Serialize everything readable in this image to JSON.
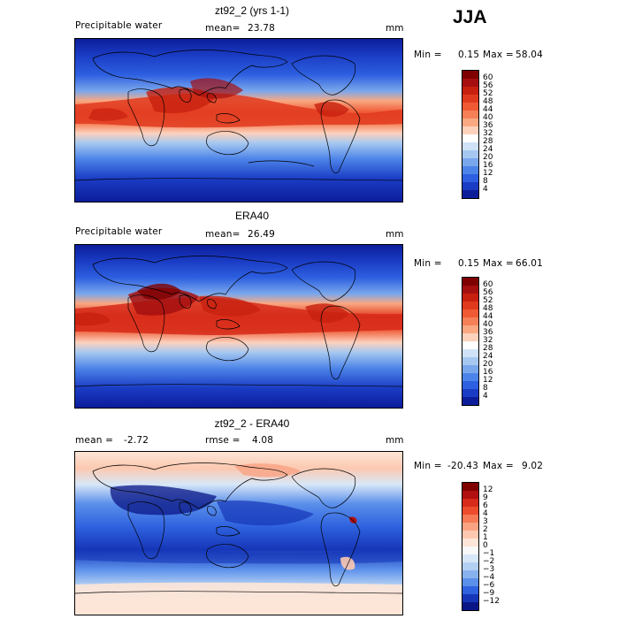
{
  "season": "JJA",
  "units": "mm",
  "panels": [
    {
      "title": "zt92_2 (yrs 1-1)",
      "variable": "Precipitable water",
      "stat1_label": "mean=",
      "stat1_value": "23.78",
      "stat2_label": "",
      "stat2_value": "",
      "min_label": "Min =",
      "min_value": "0.15",
      "max_label": "Max =",
      "max_value": "58.04",
      "legend_levels": [
        "60",
        "56",
        "52",
        "48",
        "44",
        "40",
        "36",
        "32",
        "28",
        "24",
        "20",
        "16",
        "12",
        "8",
        "4"
      ],
      "kind": "field"
    },
    {
      "title": "ERA40",
      "variable": "Precipitable water",
      "stat1_label": "mean=",
      "stat1_value": "26.49",
      "stat2_label": "",
      "stat2_value": "",
      "min_label": "Min =",
      "min_value": "0.15",
      "max_label": "Max =",
      "max_value": "66.01",
      "legend_levels": [
        "60",
        "56",
        "52",
        "48",
        "44",
        "40",
        "36",
        "32",
        "28",
        "24",
        "20",
        "16",
        "12",
        "8",
        "4"
      ],
      "kind": "field"
    },
    {
      "title": "zt92_2 - ERA40",
      "variable": "",
      "stat1_label": "mean =",
      "stat1_value": "-2.72",
      "stat2_label": "rmse =",
      "stat2_value": "4.08",
      "min_label": "Min =",
      "min_value": "-20.43",
      "max_label": "Max =",
      "max_value": "9.02",
      "legend_levels": [
        "12",
        "9",
        "6",
        "4",
        "3",
        "2",
        "1",
        "0",
        "−1",
        "−2",
        "−3",
        "−4",
        "−6",
        "−9",
        "−12"
      ],
      "kind": "difference"
    }
  ],
  "colors": {
    "field_scale": [
      "#7f0000",
      "#a50f0f",
      "#c8200f",
      "#e03a1e",
      "#ef5a35",
      "#f58058",
      "#f9a882",
      "#fcd2bd",
      "#ffffff",
      "#cfe2f7",
      "#a6c8f0",
      "#7aa7ec",
      "#4c83e8",
      "#2d5fe0",
      "#1a3cc4",
      "#0c1d9a"
    ],
    "diff_scale": [
      "#7f0000",
      "#b0100f",
      "#d62a1a",
      "#ec4c2c",
      "#f67a55",
      "#f9a383",
      "#fcc9b0",
      "#fde5d8",
      "#f8f8f8",
      "#d8e7f8",
      "#b3d0f3",
      "#88b2ee",
      "#5a8fea",
      "#2f62df",
      "#1636b8",
      "#0a1685"
    ]
  }
}
